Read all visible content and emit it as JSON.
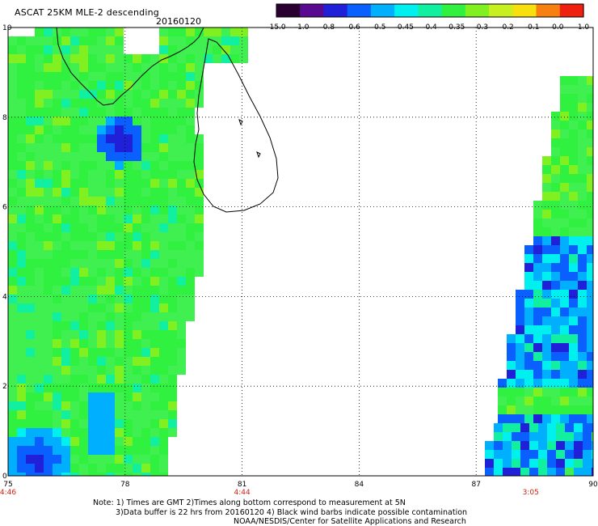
{
  "header": {
    "title": "ASCAT 25KM MLE-2 descending",
    "date": "20160120"
  },
  "colorbar": {
    "labels": [
      "-15.0",
      "-1.0",
      "-0.8",
      "-0.6",
      "-0.5",
      "-0.45",
      "-0.4",
      "-0.35",
      "-0.3",
      "-0.2",
      "-0.1",
      "0.0",
      "1.0"
    ],
    "colors": [
      "#2a0030",
      "#5a0a90",
      "#2020d8",
      "#0a60ff",
      "#00b0ff",
      "#00f0f0",
      "#10f0a0",
      "#30f040",
      "#80f020",
      "#c8f020",
      "#f8e010",
      "#f88010",
      "#f02010"
    ]
  },
  "axes": {
    "x_ticks": [
      "75",
      "78",
      "81",
      "84",
      "87",
      "90"
    ],
    "y_ticks": [
      "0",
      "2",
      "4",
      "6",
      "8",
      "10"
    ],
    "time_labels": [
      {
        "text": "4:46",
        "at": "75"
      },
      {
        "text": "4:44",
        "at": "81"
      },
      {
        "text": "3:05",
        "at": "88.4"
      }
    ]
  },
  "map_extent": {
    "lon": [
      75,
      90
    ],
    "lat": [
      0,
      10
    ]
  },
  "notes": {
    "line1": "Note: 1) Times are GMT 2)Times along bottom correspond to measurement at 5N",
    "line2": "3)Data buffer is 22 hrs from 20160120 4) Black wind barbs indicate possible contamination",
    "line3": "NOAA/NESDIS/Center for Satellite Applications and Research"
  },
  "colors": {
    "background": "#ffffff",
    "time_label": "#d02010",
    "grid": "#000000"
  }
}
